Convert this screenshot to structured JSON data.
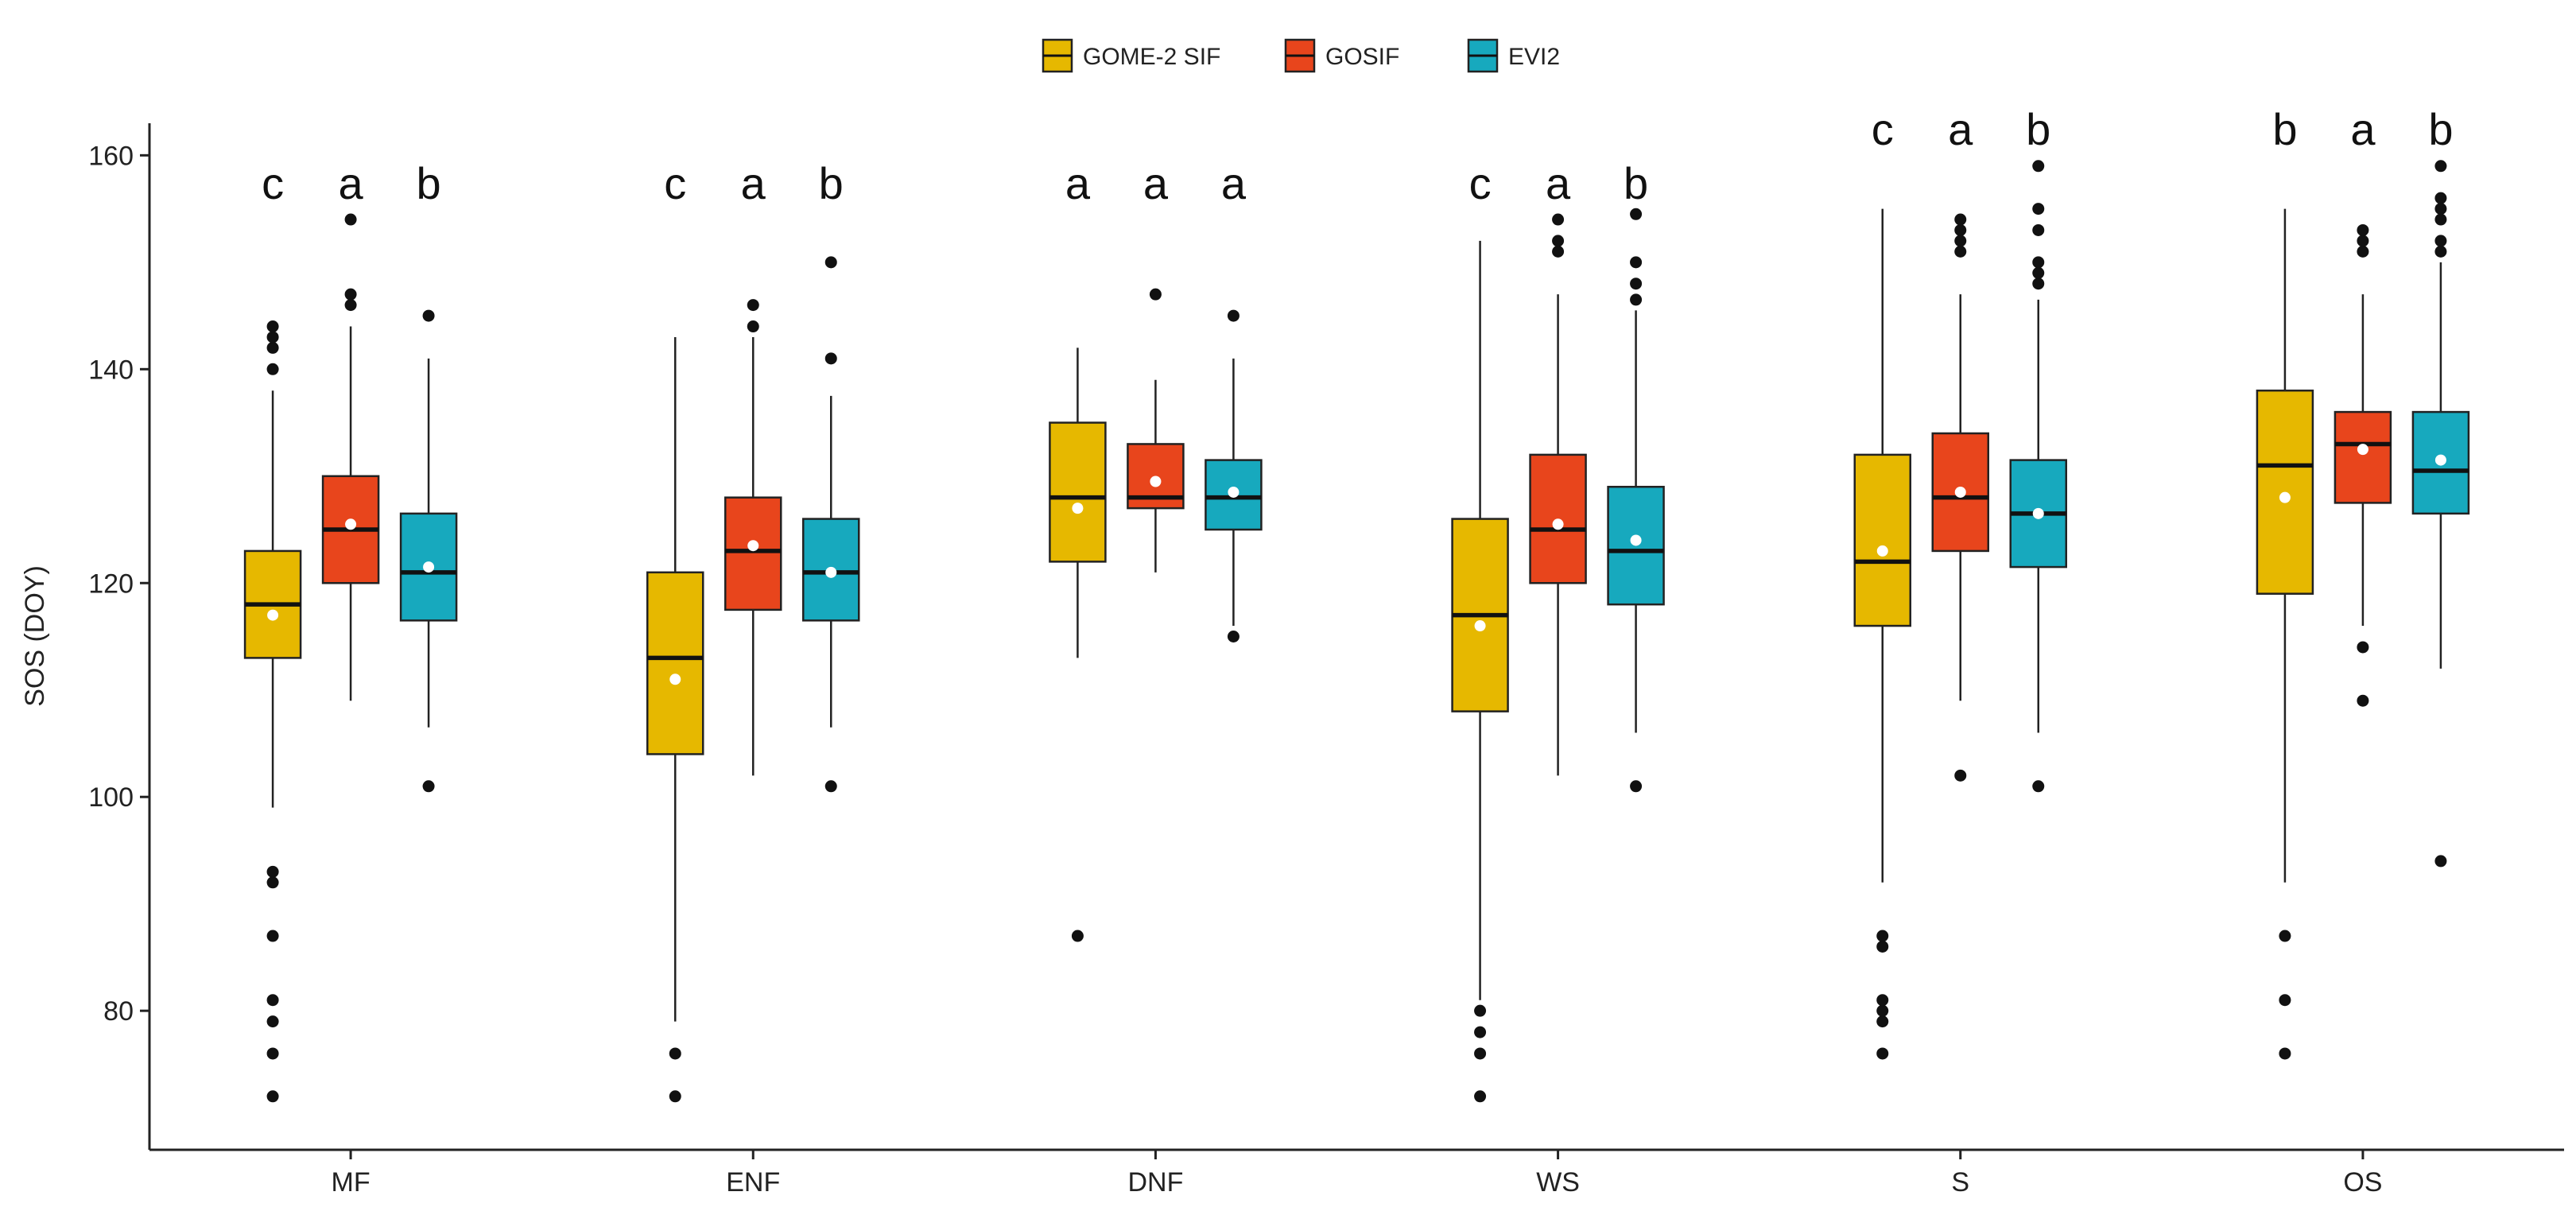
{
  "chart_data": {
    "type": "box",
    "ylabel": "SOS (DOY)",
    "xlabel": "",
    "ylim": [
      67,
      163
    ],
    "yticks": [
      80,
      100,
      120,
      140,
      160
    ],
    "categories": [
      "MF",
      "ENF",
      "DNF",
      "WS",
      "S",
      "OS"
    ],
    "legend": {
      "position": "top"
    },
    "grid": false,
    "series": [
      {
        "name": "GOME-2 SIF",
        "color": "#E6B800",
        "boxes": [
          {
            "whisker_low": 99,
            "q1": 113,
            "median": 118,
            "q3": 123,
            "whisker_high": 138,
            "mean": 117,
            "outliers": [
              72,
              76,
              79,
              81,
              87,
              92,
              93,
              140,
              142,
              143,
              144
            ],
            "letter": "c"
          },
          {
            "whisker_low": 79,
            "q1": 104,
            "median": 113,
            "q3": 121,
            "whisker_high": 143,
            "mean": 111,
            "outliers": [
              72,
              76
            ],
            "letter": "c"
          },
          {
            "whisker_low": 113,
            "q1": 122,
            "median": 128,
            "q3": 135,
            "whisker_high": 142,
            "mean": 127,
            "outliers": [
              87
            ],
            "letter": "a"
          },
          {
            "whisker_low": 81,
            "q1": 108,
            "median": 117,
            "q3": 126,
            "whisker_high": 152,
            "mean": 116,
            "outliers": [
              72,
              76,
              78,
              80
            ],
            "letter": "c"
          },
          {
            "whisker_low": 92,
            "q1": 116,
            "median": 122,
            "q3": 132,
            "whisker_high": 155,
            "mean": 123,
            "outliers": [
              76,
              79,
              80,
              81,
              86,
              87
            ],
            "letter": "c"
          },
          {
            "whisker_low": 92,
            "q1": 119,
            "median": 131,
            "q3": 138,
            "whisker_high": 155,
            "mean": 128,
            "outliers": [
              76,
              81,
              87
            ],
            "letter": "b"
          }
        ]
      },
      {
        "name": "GOSIF",
        "color": "#E8451C",
        "boxes": [
          {
            "whisker_low": 109,
            "q1": 120,
            "median": 125,
            "q3": 130,
            "whisker_high": 144,
            "mean": 125.5,
            "outliers": [
              146,
              147,
              154
            ],
            "letter": "a"
          },
          {
            "whisker_low": 102,
            "q1": 117.5,
            "median": 123,
            "q3": 128,
            "whisker_high": 143,
            "mean": 123.5,
            "outliers": [
              144,
              146
            ],
            "letter": "a"
          },
          {
            "whisker_low": 121,
            "q1": 127,
            "median": 128,
            "q3": 133,
            "whisker_high": 139,
            "mean": 129.5,
            "outliers": [
              147
            ],
            "letter": "a"
          },
          {
            "whisker_low": 102,
            "q1": 120,
            "median": 125,
            "q3": 132,
            "whisker_high": 147,
            "mean": 125.5,
            "outliers": [
              151,
              152,
              154
            ],
            "letter": "a"
          },
          {
            "whisker_low": 109,
            "q1": 123,
            "median": 128,
            "q3": 134,
            "whisker_high": 147,
            "mean": 128.5,
            "outliers": [
              102,
              151,
              152,
              153,
              154
            ],
            "letter": "a"
          },
          {
            "whisker_low": 116,
            "q1": 127.5,
            "median": 133,
            "q3": 136,
            "whisker_high": 147,
            "mean": 132.5,
            "outliers": [
              109,
              114,
              151,
              152,
              153
            ],
            "letter": "a"
          }
        ]
      },
      {
        "name": "EVI2",
        "color": "#17A9BE",
        "boxes": [
          {
            "whisker_low": 106.5,
            "q1": 116.5,
            "median": 121,
            "q3": 126.5,
            "whisker_high": 141,
            "mean": 121.5,
            "outliers": [
              101,
              145
            ],
            "letter": "b"
          },
          {
            "whisker_low": 106.5,
            "q1": 116.5,
            "median": 121,
            "q3": 126,
            "whisker_high": 137.5,
            "mean": 121,
            "outliers": [
              101,
              141,
              150
            ],
            "letter": "b"
          },
          {
            "whisker_low": 116,
            "q1": 125,
            "median": 128,
            "q3": 131.5,
            "whisker_high": 141,
            "mean": 128.5,
            "outliers": [
              115,
              145
            ],
            "letter": "a"
          },
          {
            "whisker_low": 106,
            "q1": 118,
            "median": 123,
            "q3": 129,
            "whisker_high": 145.5,
            "mean": 124,
            "outliers": [
              101,
              146.5,
              148,
              150,
              154.5
            ],
            "letter": "b"
          },
          {
            "whisker_low": 106,
            "q1": 121.5,
            "median": 126.5,
            "q3": 131.5,
            "whisker_high": 146.5,
            "mean": 126.5,
            "outliers": [
              101,
              148,
              149,
              150,
              153,
              155,
              159
            ],
            "letter": "b"
          },
          {
            "whisker_low": 112,
            "q1": 126.5,
            "median": 130.5,
            "q3": 136,
            "whisker_high": 150,
            "mean": 131.5,
            "outliers": [
              94,
              151,
              152,
              154,
              155,
              156,
              159
            ],
            "letter": "b"
          }
        ]
      }
    ]
  }
}
